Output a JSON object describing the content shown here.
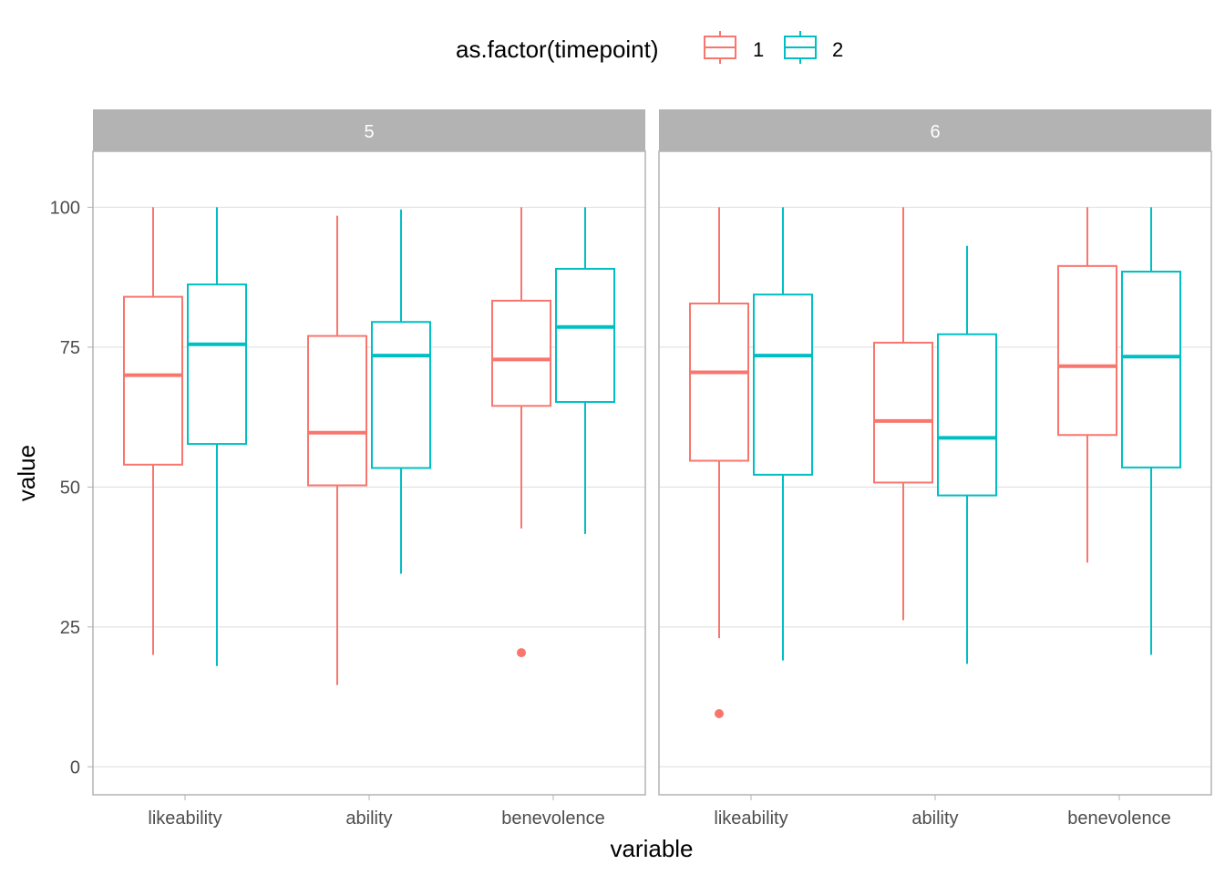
{
  "chart_data": {
    "type": "boxplot",
    "legend": {
      "title": "as.factor(timepoint)",
      "position": "top",
      "items": [
        {
          "label": "1",
          "color": "#F8766D"
        },
        {
          "label": "2",
          "color": "#00BFC4"
        }
      ]
    },
    "xlabel": "variable",
    "ylabel": "value",
    "ylim": [
      -5,
      110
    ],
    "yticks": [
      "0",
      "25",
      "50",
      "75",
      "100"
    ],
    "categories": [
      "likeability",
      "ability",
      "benevolence"
    ],
    "grid": true,
    "facets": [
      {
        "label": "5",
        "groups": [
          {
            "category": "likeability",
            "timepoint": "1",
            "min": 20,
            "q1": 54,
            "median": 70,
            "q3": 84,
            "max": 100,
            "outliers": []
          },
          {
            "category": "likeability",
            "timepoint": "2",
            "min": 18,
            "q1": 57.7,
            "median": 75.5,
            "q3": 86.2,
            "max": 100,
            "outliers": []
          },
          {
            "category": "ability",
            "timepoint": "1",
            "min": 14.6,
            "q1": 50.3,
            "median": 59.7,
            "q3": 77,
            "max": 98.5,
            "outliers": []
          },
          {
            "category": "ability",
            "timepoint": "2",
            "min": 34.5,
            "q1": 53.4,
            "median": 73.5,
            "q3": 79.5,
            "max": 99.6,
            "outliers": []
          },
          {
            "category": "benevolence",
            "timepoint": "1",
            "min": 42.6,
            "q1": 64.5,
            "median": 72.8,
            "q3": 83.3,
            "max": 100,
            "outliers": [
              20.4
            ]
          },
          {
            "category": "benevolence",
            "timepoint": "2",
            "min": 41.6,
            "q1": 65.2,
            "median": 78.6,
            "q3": 89,
            "max": 100,
            "outliers": []
          }
        ]
      },
      {
        "label": "6",
        "groups": [
          {
            "category": "likeability",
            "timepoint": "1",
            "min": 23,
            "q1": 54.7,
            "median": 70.5,
            "q3": 82.8,
            "max": 100,
            "outliers": [
              9.5
            ]
          },
          {
            "category": "likeability",
            "timepoint": "2",
            "min": 19,
            "q1": 52.2,
            "median": 73.5,
            "q3": 84.4,
            "max": 100,
            "outliers": []
          },
          {
            "category": "ability",
            "timepoint": "1",
            "min": 26.2,
            "q1": 50.8,
            "median": 61.8,
            "q3": 75.8,
            "max": 100,
            "outliers": []
          },
          {
            "category": "ability",
            "timepoint": "2",
            "min": 18.4,
            "q1": 48.5,
            "median": 58.8,
            "q3": 77.3,
            "max": 93.1,
            "outliers": []
          },
          {
            "category": "benevolence",
            "timepoint": "1",
            "min": 36.5,
            "q1": 59.3,
            "median": 71.6,
            "q3": 89.5,
            "max": 100,
            "outliers": []
          },
          {
            "category": "benevolence",
            "timepoint": "2",
            "min": 20,
            "q1": 53.5,
            "median": 73.3,
            "q3": 88.5,
            "max": 100,
            "outliers": []
          }
        ]
      }
    ]
  }
}
